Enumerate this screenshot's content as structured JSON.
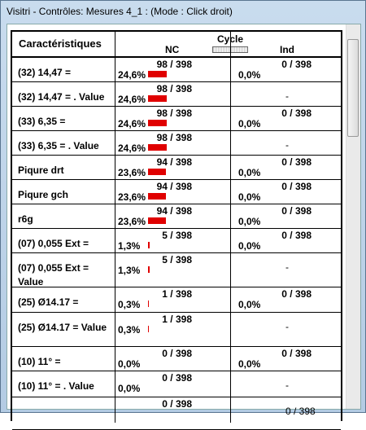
{
  "window": {
    "title": "Visitri - Contrôles: Mesures 4_1 :  (Mode : Click droit)"
  },
  "table": {
    "headers": {
      "label": "Caractéristiques",
      "nc": "NC",
      "cycle": "Cycle",
      "ind": "Ind"
    },
    "rows": [
      {
        "label": "(32) 14,47 =",
        "nc_pct": "24,6%",
        "nc_count": "98 / 398",
        "ind_pct": "0,0%",
        "ind_count": "0 / 398"
      },
      {
        "label": "(32) 14,47 =  . Value",
        "nc_pct": "24,6%",
        "nc_count": "98 / 398",
        "ind_count": "-"
      },
      {
        "label": "(33) 6,35 =",
        "nc_pct": "24,6%",
        "nc_count": "98 / 398",
        "ind_pct": "0,0%",
        "ind_count": "0 / 398"
      },
      {
        "label": "(33) 6,35 =  . Value",
        "nc_pct": "24,6%",
        "nc_count": "98 / 398",
        "ind_count": "-"
      },
      {
        "label": "Piqure drt",
        "nc_pct": "23,6%",
        "nc_count": "94 / 398",
        "ind_pct": "0,0%",
        "ind_count": "0 / 398"
      },
      {
        "label": "Piqure gch",
        "nc_pct": "23,6%",
        "nc_count": "94 / 398",
        "ind_pct": "0,0%",
        "ind_count": "0 / 398"
      },
      {
        "label": "r6g",
        "nc_pct": "23,6%",
        "nc_count": "94 / 398",
        "ind_pct": "0,0%",
        "ind_count": "0 / 398"
      },
      {
        "label": "(07) 0,055 Ext =",
        "nc_pct": "1,3%",
        "nc_count": "5 / 398",
        "ind_pct": "0,0%",
        "ind_count": "0 / 398"
      },
      {
        "label": "(07) 0,055 Ext = Value",
        "nc_pct": "1,3%",
        "nc_count": "5 / 398",
        "ind_count": "-"
      },
      {
        "label": "(25) Ø14.17 =",
        "nc_pct": "0,3%",
        "nc_count": "1 / 398",
        "ind_pct": "0,0%",
        "ind_count": "0 / 398"
      },
      {
        "label": "(25) Ø14.17 = Value",
        "nc_pct": "0,3%",
        "nc_count": "1 / 398",
        "ind_count": "-"
      },
      {
        "label": "(10) 11° =",
        "nc_pct": "0,0%",
        "nc_count": "0 / 398",
        "ind_pct": "0,0%",
        "ind_count": "0 / 398"
      },
      {
        "label": "(10) 11° =  . Value",
        "nc_pct": "0,0%",
        "nc_count": "0 / 398",
        "ind_count": "-"
      },
      {
        "nc_count": "0 / 398",
        "ind_count": "0 / 398"
      }
    ]
  }
}
